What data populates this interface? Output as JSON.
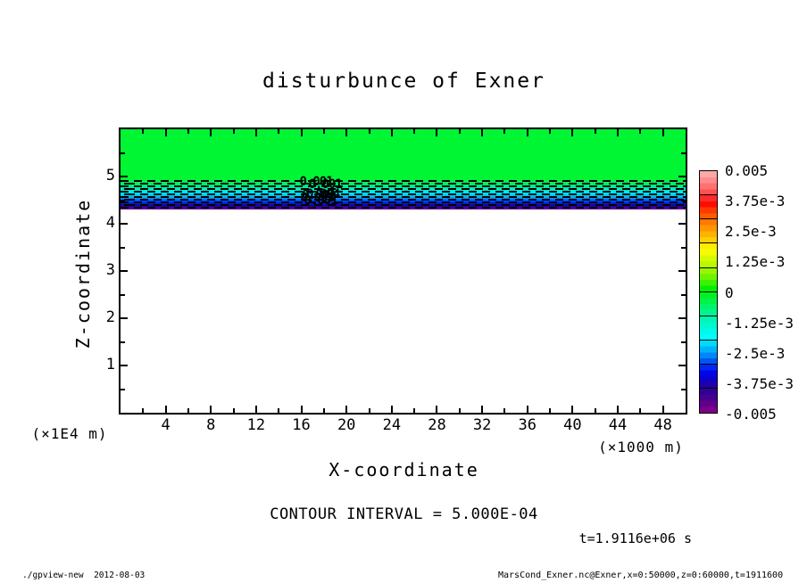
{
  "chart_data": {
    "type": "heatmap",
    "title": "disturbunce of Exner",
    "xlabel": "X-coordinate",
    "ylabel": "Z-coordinate",
    "x_units_label": "(×1000 m)",
    "y_units_label": "(×1E4 m)",
    "xlim": [
      0,
      50
    ],
    "ylim": [
      0,
      6
    ],
    "x_major_ticks": [
      4,
      8,
      12,
      16,
      20,
      24,
      28,
      32,
      36,
      40,
      44,
      48
    ],
    "x_minor_ticks": [
      2,
      6,
      10,
      14,
      18,
      22,
      26,
      30,
      34,
      38,
      42,
      46
    ],
    "y_major_ticks": [
      1,
      2,
      3,
      4,
      5
    ],
    "y_minor_ticks": [
      0.5,
      1.5,
      2.5,
      3.5,
      4.5,
      5.5
    ],
    "grid": "off",
    "annotations": {
      "contour_interval": "CONTOUR INTERVAL = 5.000E-04",
      "time": "t=1.9116e+06 s",
      "contour_labels": [
        {
          "text": "0.001",
          "x": 17.3,
          "z": 4.88
        },
        {
          "text": "0.001",
          "x": 18.1,
          "z": 4.83
        },
        {
          "text": "0.004",
          "x": 17.9,
          "z": 4.63
        },
        {
          "text": "0.002",
          "x": 17.5,
          "z": 4.6
        },
        {
          "text": "0.003",
          "x": 17.4,
          "z": 4.55
        },
        {
          "text": "0.001",
          "x": 17.7,
          "z": 4.5
        }
      ]
    },
    "field": {
      "description": "Exner disturbance: near-zero (green) region above z≈4.95e4 m, thin stratified negative layer from z≈4.95e4 m down to z≈4.31e4 m reaching -0.005, white below",
      "positive_region": {
        "z_top": 6.0,
        "z_bottom": 4.95,
        "color": "#00f632"
      },
      "band": {
        "z_top": 4.95,
        "z_bottom": 4.31,
        "gradient_stops": [
          {
            "color": "#00f632",
            "pct": 0
          },
          {
            "color": "#00f27c",
            "pct": 20
          },
          {
            "color": "#00eec2",
            "pct": 33
          },
          {
            "color": "#00e9ef",
            "pct": 44
          },
          {
            "color": "#00bdf6",
            "pct": 57
          },
          {
            "color": "#0071fa",
            "pct": 67
          },
          {
            "color": "#002ae8",
            "pct": 77
          },
          {
            "color": "#1400ad",
            "pct": 86
          },
          {
            "color": "#3b0096",
            "pct": 93
          },
          {
            "color": "#75008f",
            "pct": 100
          }
        ]
      },
      "blank_region": {
        "z_top": 4.31,
        "z_bottom": 0.0,
        "color": "#ffffff"
      },
      "dashed_contour_lines": {
        "count": 11,
        "z_top": 4.92,
        "z_bottom": 4.36,
        "color": "#000000"
      }
    },
    "colorbar": {
      "position": "right",
      "labels": [
        "0.005",
        "3.75e-3",
        "2.5e-3",
        "1.25e-3",
        "0",
        "-1.25e-3",
        "-2.5e-3",
        "-3.75e-3",
        "-0.005"
      ],
      "boxes": [
        [
          "#ffa8a8",
          "#ff8d8d",
          "#ff7171",
          "#ff5151"
        ],
        [
          "#ff2a2a",
          "#fc0d00",
          "#ff3a00",
          "#ff5c00"
        ],
        [
          "#ff7a00",
          "#ff9600",
          "#ffb200",
          "#ffcf00"
        ],
        [
          "#ffec00",
          "#f6fc00",
          "#d8fa00",
          "#b9f800"
        ],
        [
          "#97f600",
          "#6cf400",
          "#3bf200",
          "#00f000"
        ],
        [
          "#00f122",
          "#00f247",
          "#00f46c",
          "#00f590"
        ],
        [
          "#00f7b2",
          "#00f8d0",
          "#00faea",
          "#00fcfb"
        ],
        [
          "#00dafb",
          "#00b3f9",
          "#0086f7",
          "#0055f5"
        ],
        [
          "#0028f3",
          "#0006e8",
          "#0e00c6",
          "#2200a5"
        ],
        [
          "#310095",
          "#480090",
          "#61008c",
          "#7c0088"
        ]
      ]
    }
  },
  "footer": {
    "left": "./gpview-new  2012-08-03",
    "right": "MarsCond_Exner.nc@Exner,x=0:50000,z=0:60000,t=1911600"
  }
}
